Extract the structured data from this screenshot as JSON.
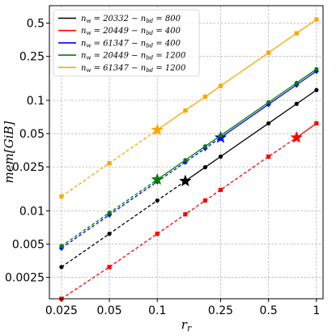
{
  "chart_data": {
    "type": "line",
    "xlabel": "r_r",
    "ylabel": "mem[GiB]",
    "xscale": "log",
    "yscale": "log",
    "xlim": [
      0.021,
      1.1
    ],
    "ylim": [
      0.0016,
      0.72
    ],
    "xticks": [
      0.025,
      0.05,
      0.1,
      0.25,
      0.5,
      1
    ],
    "xtick_labels": [
      "0.025",
      "0.05",
      "0.1",
      "0.25",
      "0.5",
      "1"
    ],
    "yticks": [
      0.0025,
      0.005,
      0.01,
      0.025,
      0.05,
      0.1,
      0.25,
      0.5
    ],
    "ytick_labels": [
      "0.0025",
      "0.005",
      "0.01",
      "0.025",
      "0.05",
      "0.1",
      "0.25",
      "0.5"
    ],
    "grid": true,
    "legend_position": "top-left",
    "series": [
      {
        "name": "n_w = 20332 − n_bd = 800",
        "name_parts": [
          "20332",
          "800"
        ],
        "color": "#000000",
        "marker": "circle",
        "x": [
          0.025,
          0.05,
          0.1,
          0.15,
          0.2,
          0.25,
          0.5,
          0.75,
          1.0
        ],
        "y": [
          0.0031,
          0.0062,
          0.0124,
          0.0186,
          0.0248,
          0.031,
          0.062,
          0.093,
          0.124
        ],
        "star": [
          0.15,
          0.0186
        ]
      },
      {
        "name": "n_w = 20449 − n_bd = 400",
        "name_parts": [
          "20449",
          "400"
        ],
        "color": "#ff0000",
        "marker": "square",
        "x": [
          0.025,
          0.05,
          0.1,
          0.15,
          0.2,
          0.25,
          0.5,
          0.75,
          1.0
        ],
        "y": [
          0.0016,
          0.0031,
          0.0062,
          0.0093,
          0.0124,
          0.0155,
          0.031,
          0.046,
          0.062
        ],
        "star": [
          0.75,
          0.046
        ]
      },
      {
        "name": "n_w = 61347 − n_bd = 400",
        "name_parts": [
          "61347",
          "400"
        ],
        "color": "#0000ff",
        "marker": "diamond",
        "x": [
          0.025,
          0.05,
          0.1,
          0.15,
          0.2,
          0.25,
          0.5,
          0.75,
          1.0
        ],
        "y": [
          0.0046,
          0.0092,
          0.0184,
          0.0276,
          0.0368,
          0.046,
          0.092,
          0.138,
          0.184
        ],
        "star": [
          0.25,
          0.046
        ]
      },
      {
        "name": "n_w = 20449 − n_bd = 1200",
        "name_parts": [
          "20449",
          "1200"
        ],
        "color": "#008000",
        "marker": "circle",
        "x": [
          0.025,
          0.05,
          0.1,
          0.15,
          0.2,
          0.25,
          0.5,
          0.75,
          1.0
        ],
        "y": [
          0.0048,
          0.0096,
          0.0192,
          0.0288,
          0.0384,
          0.048,
          0.096,
          0.144,
          0.192
        ],
        "star": [
          0.1,
          0.0192
        ]
      },
      {
        "name": "n_w = 61347 − n_bd = 1200",
        "name_parts": [
          "61347",
          "1200"
        ],
        "color": "#ffa500",
        "marker": "square",
        "x": [
          0.025,
          0.05,
          0.1,
          0.15,
          0.2,
          0.25,
          0.5,
          0.75,
          1.0
        ],
        "y": [
          0.0135,
          0.027,
          0.054,
          0.081,
          0.108,
          0.135,
          0.27,
          0.405,
          0.54
        ],
        "star": [
          0.1,
          0.054
        ]
      }
    ]
  }
}
